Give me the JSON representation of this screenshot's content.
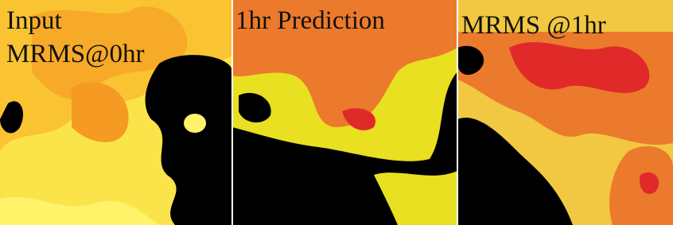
{
  "panels": [
    {
      "label_lines": [
        "Input",
        "MRMS@0hr"
      ]
    },
    {
      "label_lines": [
        "1hr Prediction"
      ]
    },
    {
      "label_lines": [
        "MRMS @1hr"
      ]
    }
  ]
}
